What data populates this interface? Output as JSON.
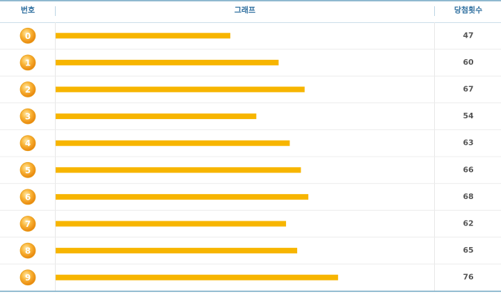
{
  "chart_data": {
    "type": "bar",
    "columns": [
      "번호",
      "그래프",
      "당첨횟수"
    ],
    "categories": [
      "0",
      "1",
      "2",
      "3",
      "4",
      "5",
      "6",
      "7",
      "8",
      "9"
    ],
    "values": [
      47,
      60,
      67,
      54,
      63,
      66,
      68,
      62,
      65,
      76
    ],
    "color": "#f7b500"
  }
}
